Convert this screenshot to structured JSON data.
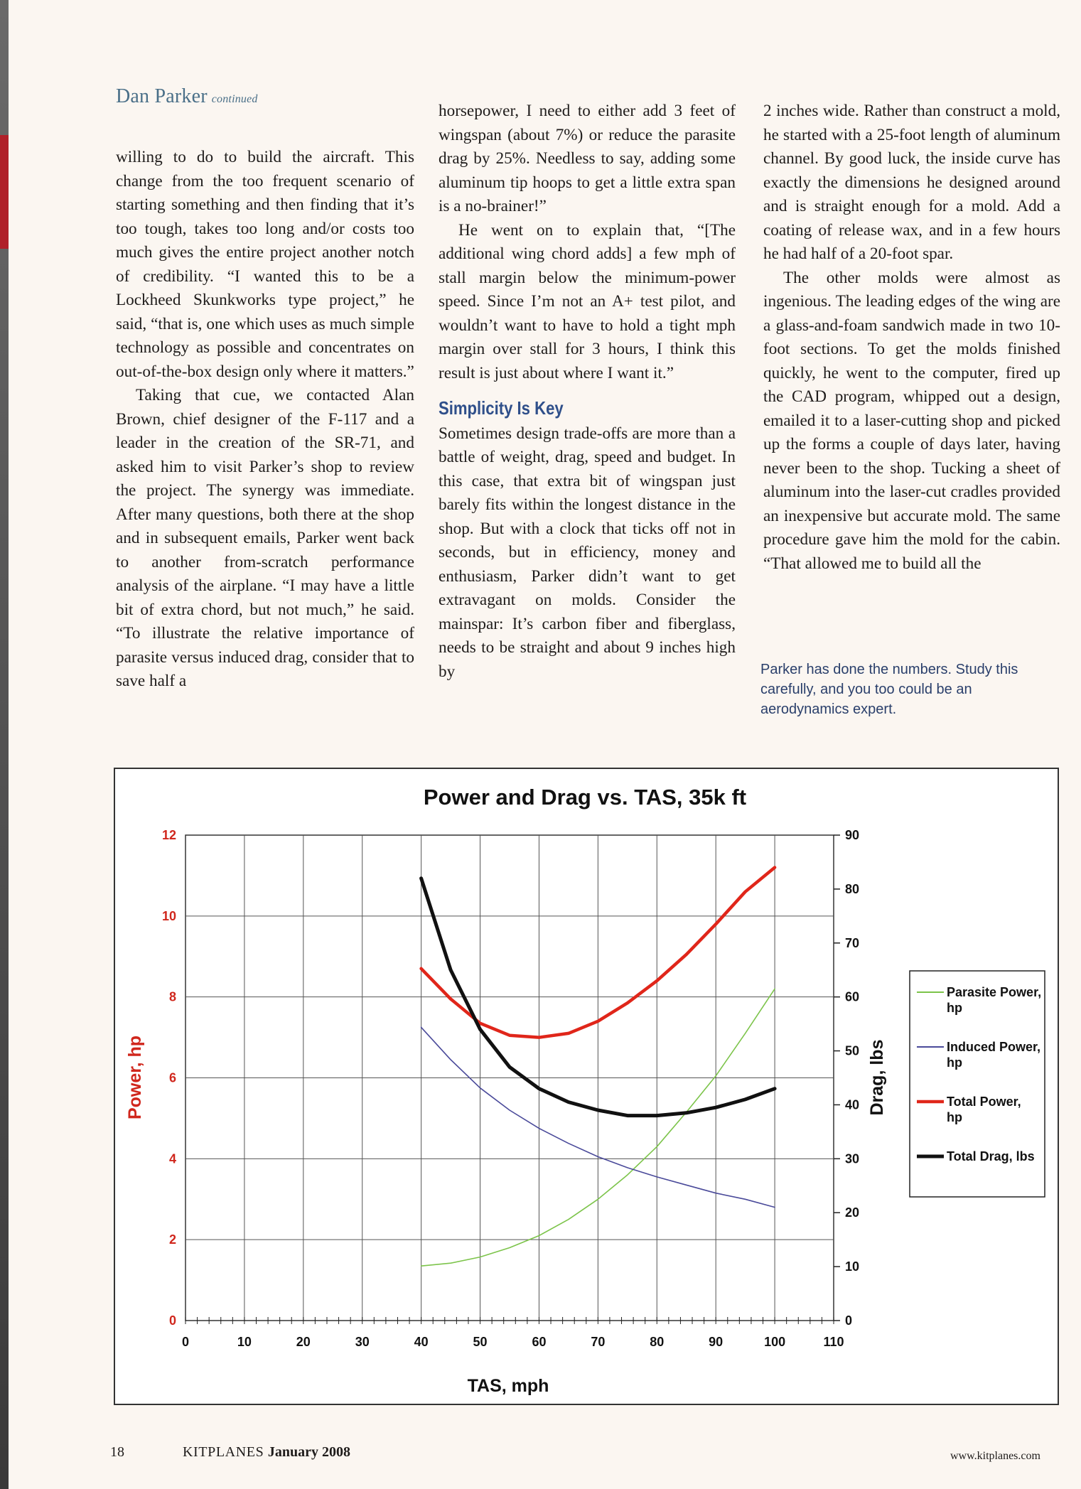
{
  "header": {
    "name": "Dan Parker",
    "continued": "continued"
  },
  "article": {
    "col1": [
      "willing to do to build the aircraft. This change from the too frequent scenario of starting something and then finding that it’s too tough, takes too long and/or costs too much gives the entire project another notch of credibility. “I wanted this to be a Lockheed Skunkworks type project,” he said, “that is, one which uses as much simple technology as possible and concentrates on out-of-the-box design only where it matters.”",
      "Taking that cue, we contacted Alan Brown, chief designer of the F-117 and a leader in the creation of the SR-71, and asked him to visit Parker’s shop to review the project. The synergy was immediate. After many questions, both there at the shop and in subsequent emails, Parker went back to another from-scratch performance analysis of the airplane. “I may have a little bit of extra chord, but not much,” he said. “To illustrate the relative importance of parasite versus induced drag, consider that to save half a"
    ],
    "col2": [
      "horsepower, I need to either add 3 feet of wingspan (about 7%) or reduce the parasite drag by 25%. Needless to say, adding some aluminum tip hoops to get a little extra span is a no-brainer!”",
      "He went on to explain that, “[The additional wing chord adds] a few mph of stall margin below the minimum-power speed. Since I’m not an A+ test pilot, and wouldn’t want to have to hold a tight mph margin over stall for 3 hours, I think this result is just about where I want it.”"
    ],
    "subhead": "Simplicity Is Key",
    "col2b": [
      "Sometimes design trade-offs are more than a battle of weight, drag, speed and budget. In this case, that extra bit of wingspan just barely fits within the longest distance in the shop. But with a clock that ticks off not in seconds, but in efficiency, money and enthusiasm, Parker didn’t want to get extravagant on molds. Consider the mainspar: It’s carbon fiber and fiberglass, needs to be straight and about 9 inches high by"
    ],
    "col3": [
      "2 inches wide. Rather than construct a mold, he started with a 25-foot length of aluminum channel. By good luck, the inside curve has exactly the dimensions he designed around and is straight enough for a mold. Add a coating of release wax, and in a few hours he had half of a 20-foot spar.",
      "The other molds were almost as ingenious. The leading edges of the wing are a glass-and-foam sandwich made in two 10-foot sections. To get the molds finished quickly, he went to the computer, fired up the CAD program, whipped out a design, emailed it to a laser-cutting shop and picked up the forms a couple of days later, having never been to the shop. Tucking a sheet of aluminum into the laser-cut cradles provided an inexpensive but accurate mold. The same procedure gave him the mold for the cabin. “That allowed me to build all the"
    ],
    "caption": "Parker has done the numbers. Study this carefully, and you too could be an aerodynamics expert."
  },
  "chart_data": {
    "type": "line",
    "title": "Power and Drag vs. TAS, 35k ft",
    "xlabel": "TAS, mph",
    "ylabel_left": "Power, hp",
    "ylabel_right": "Drag, lbs",
    "xlim": [
      0,
      110
    ],
    "ylim_left": [
      0,
      12
    ],
    "ylim_right": [
      0,
      90
    ],
    "x_ticks": [
      "0",
      "10",
      "20",
      "30",
      "40",
      "50",
      "60",
      "70",
      "80",
      "90",
      "100",
      "110"
    ],
    "y_left_ticks": [
      "0",
      "2",
      "4",
      "6",
      "8",
      "10",
      "12"
    ],
    "y_right_ticks": [
      "0",
      "10",
      "20",
      "30",
      "40",
      "50",
      "60",
      "70",
      "80",
      "90"
    ],
    "grid": true,
    "legend_position": "right",
    "colors": {
      "left_axis": "#d0261c",
      "parasite": "#7cc44a",
      "induced": "#4a4a9a",
      "total_power": "#e0261a",
      "total_drag": "#111111"
    },
    "x": [
      40,
      45,
      50,
      55,
      60,
      65,
      70,
      75,
      80,
      85,
      90,
      95,
      100
    ],
    "series": [
      {
        "name": "Parasite Power, hp",
        "axis": "left",
        "values": [
          1.35,
          1.42,
          1.57,
          1.8,
          2.1,
          2.5,
          3.0,
          3.6,
          4.3,
          5.15,
          6.05,
          7.1,
          8.2
        ]
      },
      {
        "name": "Induced Power, hp",
        "axis": "left",
        "values": [
          7.25,
          6.45,
          5.75,
          5.2,
          4.75,
          4.38,
          4.05,
          3.78,
          3.55,
          3.35,
          3.15,
          3.0,
          2.8
        ]
      },
      {
        "name": "Total Power, hp",
        "axis": "left",
        "values": [
          8.7,
          7.95,
          7.35,
          7.05,
          7.0,
          7.1,
          7.4,
          7.85,
          8.4,
          9.05,
          9.8,
          10.6,
          11.2
        ]
      },
      {
        "name": "Total Drag, lbs",
        "axis": "right",
        "values": [
          82,
          65,
          54,
          47,
          43,
          40.5,
          39,
          38,
          38,
          38.5,
          39.5,
          41,
          43
        ]
      }
    ]
  },
  "footer": {
    "page": "18",
    "magazine": "KITPLANES",
    "issue": "January 2008",
    "url": "www.kitplanes.com"
  }
}
